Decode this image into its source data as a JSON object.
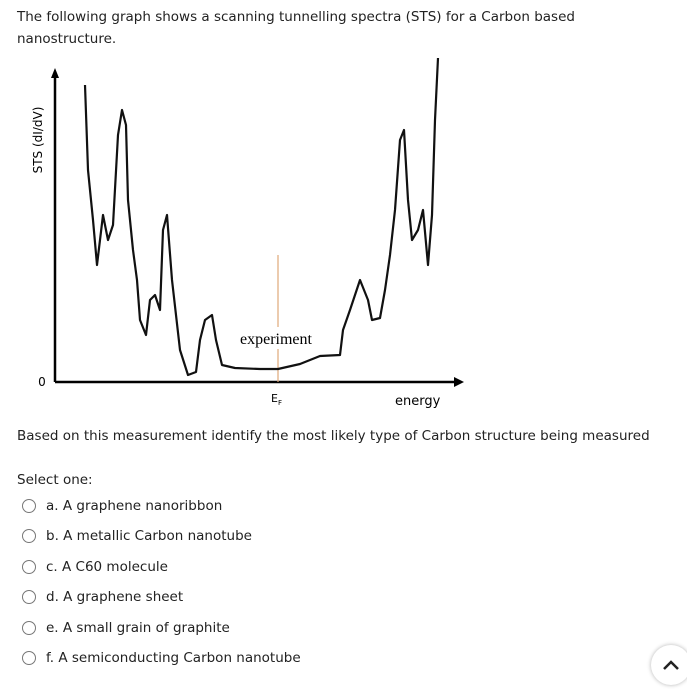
{
  "question": {
    "intro": "The following graph shows a scanning tunnelling spectra (STS) for a Carbon based nanostructure.",
    "figure": {
      "y_label": "STS (dI/dV)",
      "origin_label": "0",
      "fermi": {
        "main": "E",
        "sub": "F"
      },
      "x_label": "energy",
      "curve_label": "experiment"
    },
    "prompt": "Based on this measurement identify the most likely type of Carbon structure being measured",
    "select_one": "Select one:",
    "options": [
      "a. A graphene nanoribbon",
      "b. A metallic Carbon nanotube",
      "c. A C60 molecule",
      "d. A graphene sheet",
      "e. A small grain of graphite",
      "f. A semiconducting Carbon nanotube"
    ]
  }
}
